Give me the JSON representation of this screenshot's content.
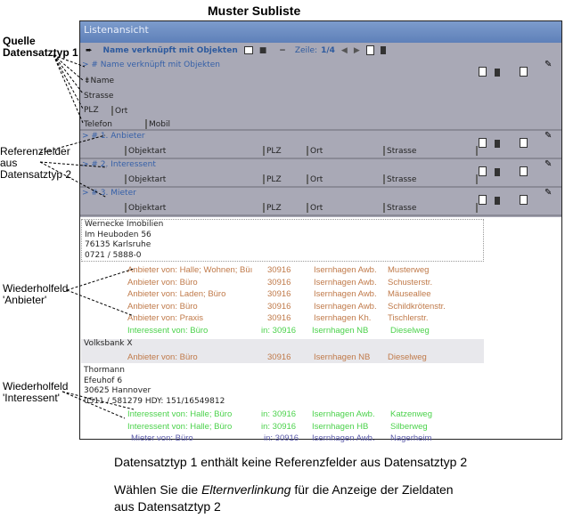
{
  "heading": "Muster Subliste",
  "annotations": {
    "quelle": [
      "Quelle",
      "Datensatztyp 1"
    ],
    "referenz": [
      "Referenzfelder",
      "aus",
      "Datensatztyp 2"
    ],
    "wdh_anbieter": [
      "Wiederholfeld",
      "'Anbieter'"
    ],
    "wdh_interessent": [
      "Wiederholfeld",
      "'Interessent'"
    ]
  },
  "window": {
    "title": "Listenansicht"
  },
  "toolbar": {
    "title": "Name verknüpft mit Objekten",
    "zeile_label": "Zeile:",
    "zeile_value": "1/4"
  },
  "source_section": {
    "link": "> # Name verknüpft mit Objekten",
    "fields": [
      "Name",
      "Strasse",
      "PLZ",
      "Ort",
      "Telefon",
      "Mobil"
    ]
  },
  "ref_sections": [
    {
      "link": "> # 1. Anbieter",
      "cols": [
        "Objektart",
        "PLZ",
        "Ort",
        "Strasse"
      ]
    },
    {
      "link": "> # 2. Interessent",
      "cols": [
        "Objektart",
        "PLZ",
        "Ort",
        "Strasse"
      ]
    },
    {
      "link": "> # 3. Mieter",
      "cols": [
        "Objektart",
        "PLZ",
        "Ort",
        "Strasse"
      ]
    }
  ],
  "records": [
    {
      "lines": [
        "Wernecke Imobilien",
        "Im Heuboden 56",
        "76135  Karlsruhe",
        "0721 / 5888-0"
      ],
      "rows": [
        {
          "type": "orange",
          "c": [
            "Anbieter von: Halle; Wohnen; Büı",
            "30916",
            "Isernhagen Awb.",
            "Musterweg"
          ]
        },
        {
          "type": "orange",
          "c": [
            "Anbieter von: Büro",
            "30916",
            "Isernhagen Awb.",
            "Schusterstr."
          ]
        },
        {
          "type": "orange",
          "c": [
            "Anbieter von: Laden; Büro",
            "30916",
            "Isernhagen Awb.",
            "Mäuseallee"
          ]
        },
        {
          "type": "orange",
          "c": [
            "Anbieter von: Büro",
            "30916",
            "Isernhagen Awb.",
            "Schildkrötenstr."
          ]
        },
        {
          "type": "orange",
          "c": [
            "Anbieter von: Praxis",
            "30916",
            "Isernhagen Kh.",
            "Tischlerstr."
          ]
        },
        {
          "type": "green",
          "c": [
            "Interessent von: Büro",
            "in: 30916",
            "Isernhagen NB",
            "Dieselweg"
          ]
        }
      ]
    },
    {
      "lines": [
        "Volksbank X"
      ],
      "rows": [
        {
          "type": "orange",
          "c": [
            "Anbieter von: Büro",
            "30916",
            "Isernhagen NB",
            "Dieselweg"
          ]
        }
      ]
    },
    {
      "lines": [
        "Thormann",
        "Efeuhof 6",
        "30625  Hannover",
        "0511 / 581279   HDY: 151/16549812"
      ],
      "rows": [
        {
          "type": "green",
          "c": [
            "Interessent von: Halle; Büro",
            "in: 30916",
            "Isernhagen Awb.",
            "Katzenweg"
          ]
        },
        {
          "type": "green",
          "c": [
            "Interessent von: Halle; Büro",
            "in: 30916",
            "Isernhagen HB",
            "Silberweg"
          ]
        },
        {
          "type": "purple",
          "c": [
            "Mieter von: Büro",
            "in: 30916",
            "Isernhagen Awb.",
            "Nagerheim"
          ]
        }
      ]
    }
  ],
  "footer": {
    "line1": "Datensatztyp 1 enthält keine Referenzfelder aus Datensatztyp 2",
    "line2_pre": "Wählen Sie die ",
    "line2_em": "Elternverlinkung",
    "line2_post": " für die Anzeige der Zieldaten",
    "line3": "aus Datensatztyp 2"
  },
  "colors": {
    "orange": "#c07a4a",
    "green": "#4bd24b",
    "purple": "#5a5aa8",
    "title": "#5e80b9",
    "panel": "#a9a9b6"
  }
}
